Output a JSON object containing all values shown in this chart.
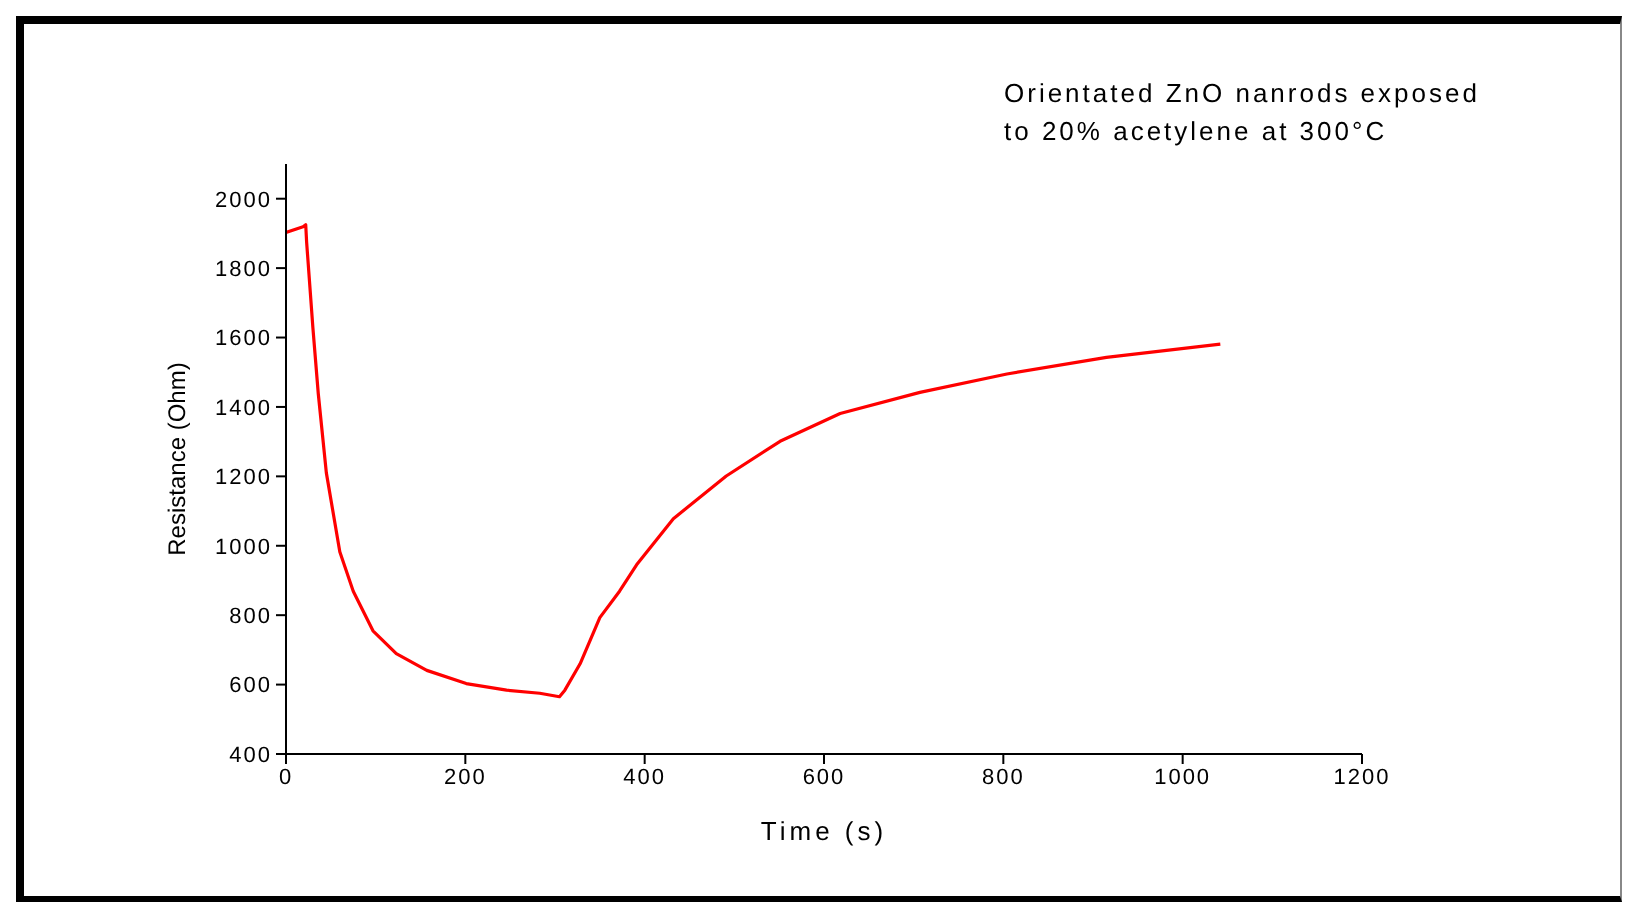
{
  "chart_data": {
    "type": "line",
    "xlabel": "Time (s)",
    "ylabel": "Resistance (Ohm)",
    "annotations": [
      "Orientated ZnO nanrods exposed\nto 20% acetylene at 300°C"
    ],
    "xlim": [
      0,
      1200
    ],
    "xticks": [
      0,
      200,
      400,
      600,
      800,
      1000,
      1200
    ],
    "ylim": [
      400,
      2100
    ],
    "yticks": [
      400,
      600,
      800,
      1000,
      1200,
      1400,
      1600,
      1800,
      2000
    ],
    "grid": false,
    "legend": false,
    "marker": "none",
    "line_style": "solid",
    "series": [
      {
        "color": "#ff0000",
        "x": [
          0,
          19,
          22,
          23,
          30,
          36,
          45,
          60,
          75,
          97,
          123,
          157,
          201,
          246,
          283,
          305,
          311,
          328,
          350,
          372,
          391,
          432,
          491,
          551,
          618,
          707,
          804,
          915,
          1042
        ],
        "values": [
          1903,
          1919,
          1925,
          1875,
          1628,
          1438,
          1210,
          983,
          869,
          755,
          689,
          641,
          603,
          584,
          575,
          565,
          584,
          660,
          793,
          869,
          945,
          1078,
          1201,
          1301,
          1381,
          1442,
          1495,
          1543,
          1581
        ]
      }
    ]
  }
}
